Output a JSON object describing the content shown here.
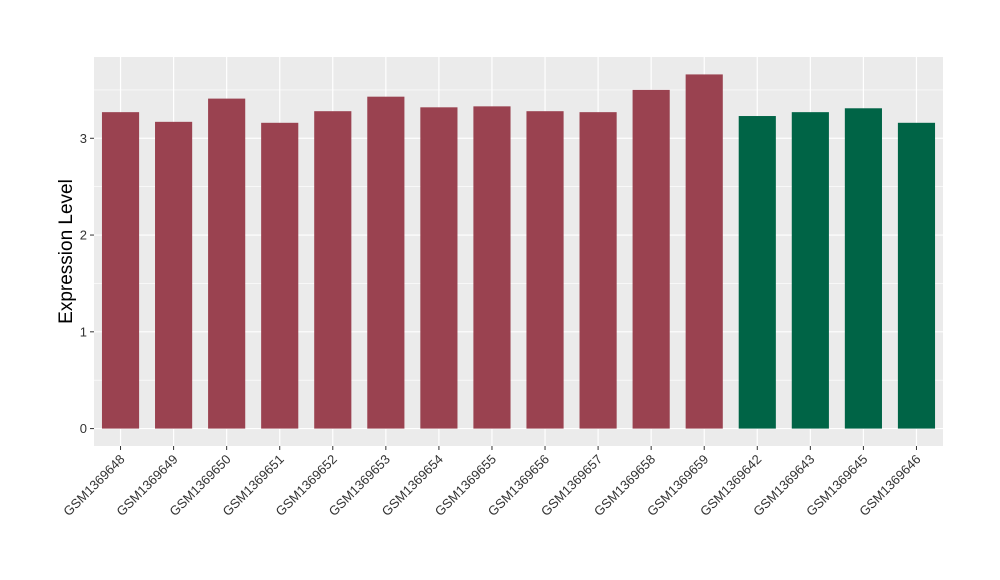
{
  "chart_data": {
    "type": "bar",
    "title": "",
    "xlabel": "",
    "ylabel": "Expression Level",
    "ylim": [
      -0.18,
      3.84
    ],
    "yticks": [
      0,
      1,
      2,
      3
    ],
    "grid": true,
    "legend": "none",
    "colors": {
      "group1": "#9a4250",
      "group2": "#006446",
      "panel": "#ebebeb",
      "grid": "#ffffff"
    },
    "categories": [
      "GSM1369648",
      "GSM1369649",
      "GSM1369650",
      "GSM1369651",
      "GSM1369652",
      "GSM1369653",
      "GSM1369654",
      "GSM1369655",
      "GSM1369656",
      "GSM1369657",
      "GSM1369658",
      "GSM1369659",
      "GSM1369642",
      "GSM1369643",
      "GSM1369645",
      "GSM1369646"
    ],
    "values": [
      3.27,
      3.17,
      3.41,
      3.16,
      3.28,
      3.43,
      3.32,
      3.33,
      3.28,
      3.27,
      3.5,
      3.66,
      3.23,
      3.27,
      3.31,
      3.16
    ],
    "groups": [
      "group1",
      "group1",
      "group1",
      "group1",
      "group1",
      "group1",
      "group1",
      "group1",
      "group1",
      "group1",
      "group1",
      "group1",
      "group2",
      "group2",
      "group2",
      "group2"
    ]
  }
}
